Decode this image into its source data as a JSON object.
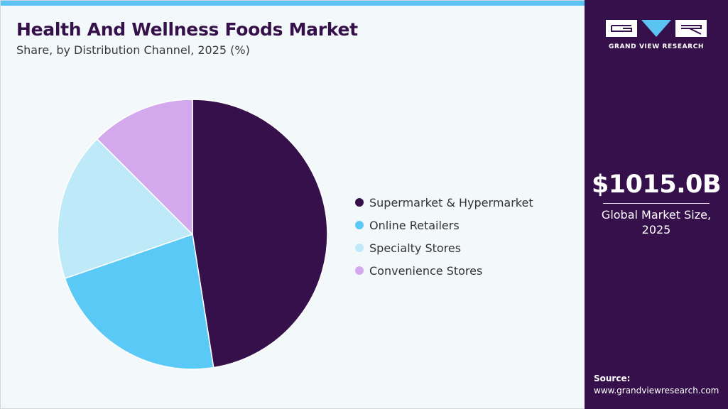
{
  "header": {
    "title": "Health And Wellness Foods Market",
    "subtitle": "Share, by Distribution Channel, 2025 (%)"
  },
  "colors": {
    "accent_bar": "#5bc3f2",
    "panel_bg": "#36104a",
    "chart_bg": "#f3f8fb"
  },
  "chart_data": {
    "type": "pie",
    "title": "Health And Wellness Foods Market",
    "subtitle": "Share, by Distribution Channel, 2025 (%)",
    "start_angle_deg": 0,
    "direction": "clockwise",
    "legend_position": "right",
    "slices": [
      {
        "label": "Supermarket & Hypermarket",
        "value": 47.5,
        "color": "#36104a"
      },
      {
        "label": "Online Retailers",
        "value": 22.2,
        "color": "#5bc9f5"
      },
      {
        "label": "Specialty Stores",
        "value": 17.8,
        "color": "#bde9f8"
      },
      {
        "label": "Convenience Stores",
        "value": 12.5,
        "color": "#d4a8ec"
      }
    ]
  },
  "sidebar": {
    "logo_name": "grand-view-research-logo",
    "logo_text": "GRAND VIEW RESEARCH",
    "market_value": "$1015.0B",
    "market_caption_line1": "Global Market Size,",
    "market_caption_line2": "2025",
    "source_label": "Source:",
    "source_url": "www.grandviewresearch.com"
  }
}
